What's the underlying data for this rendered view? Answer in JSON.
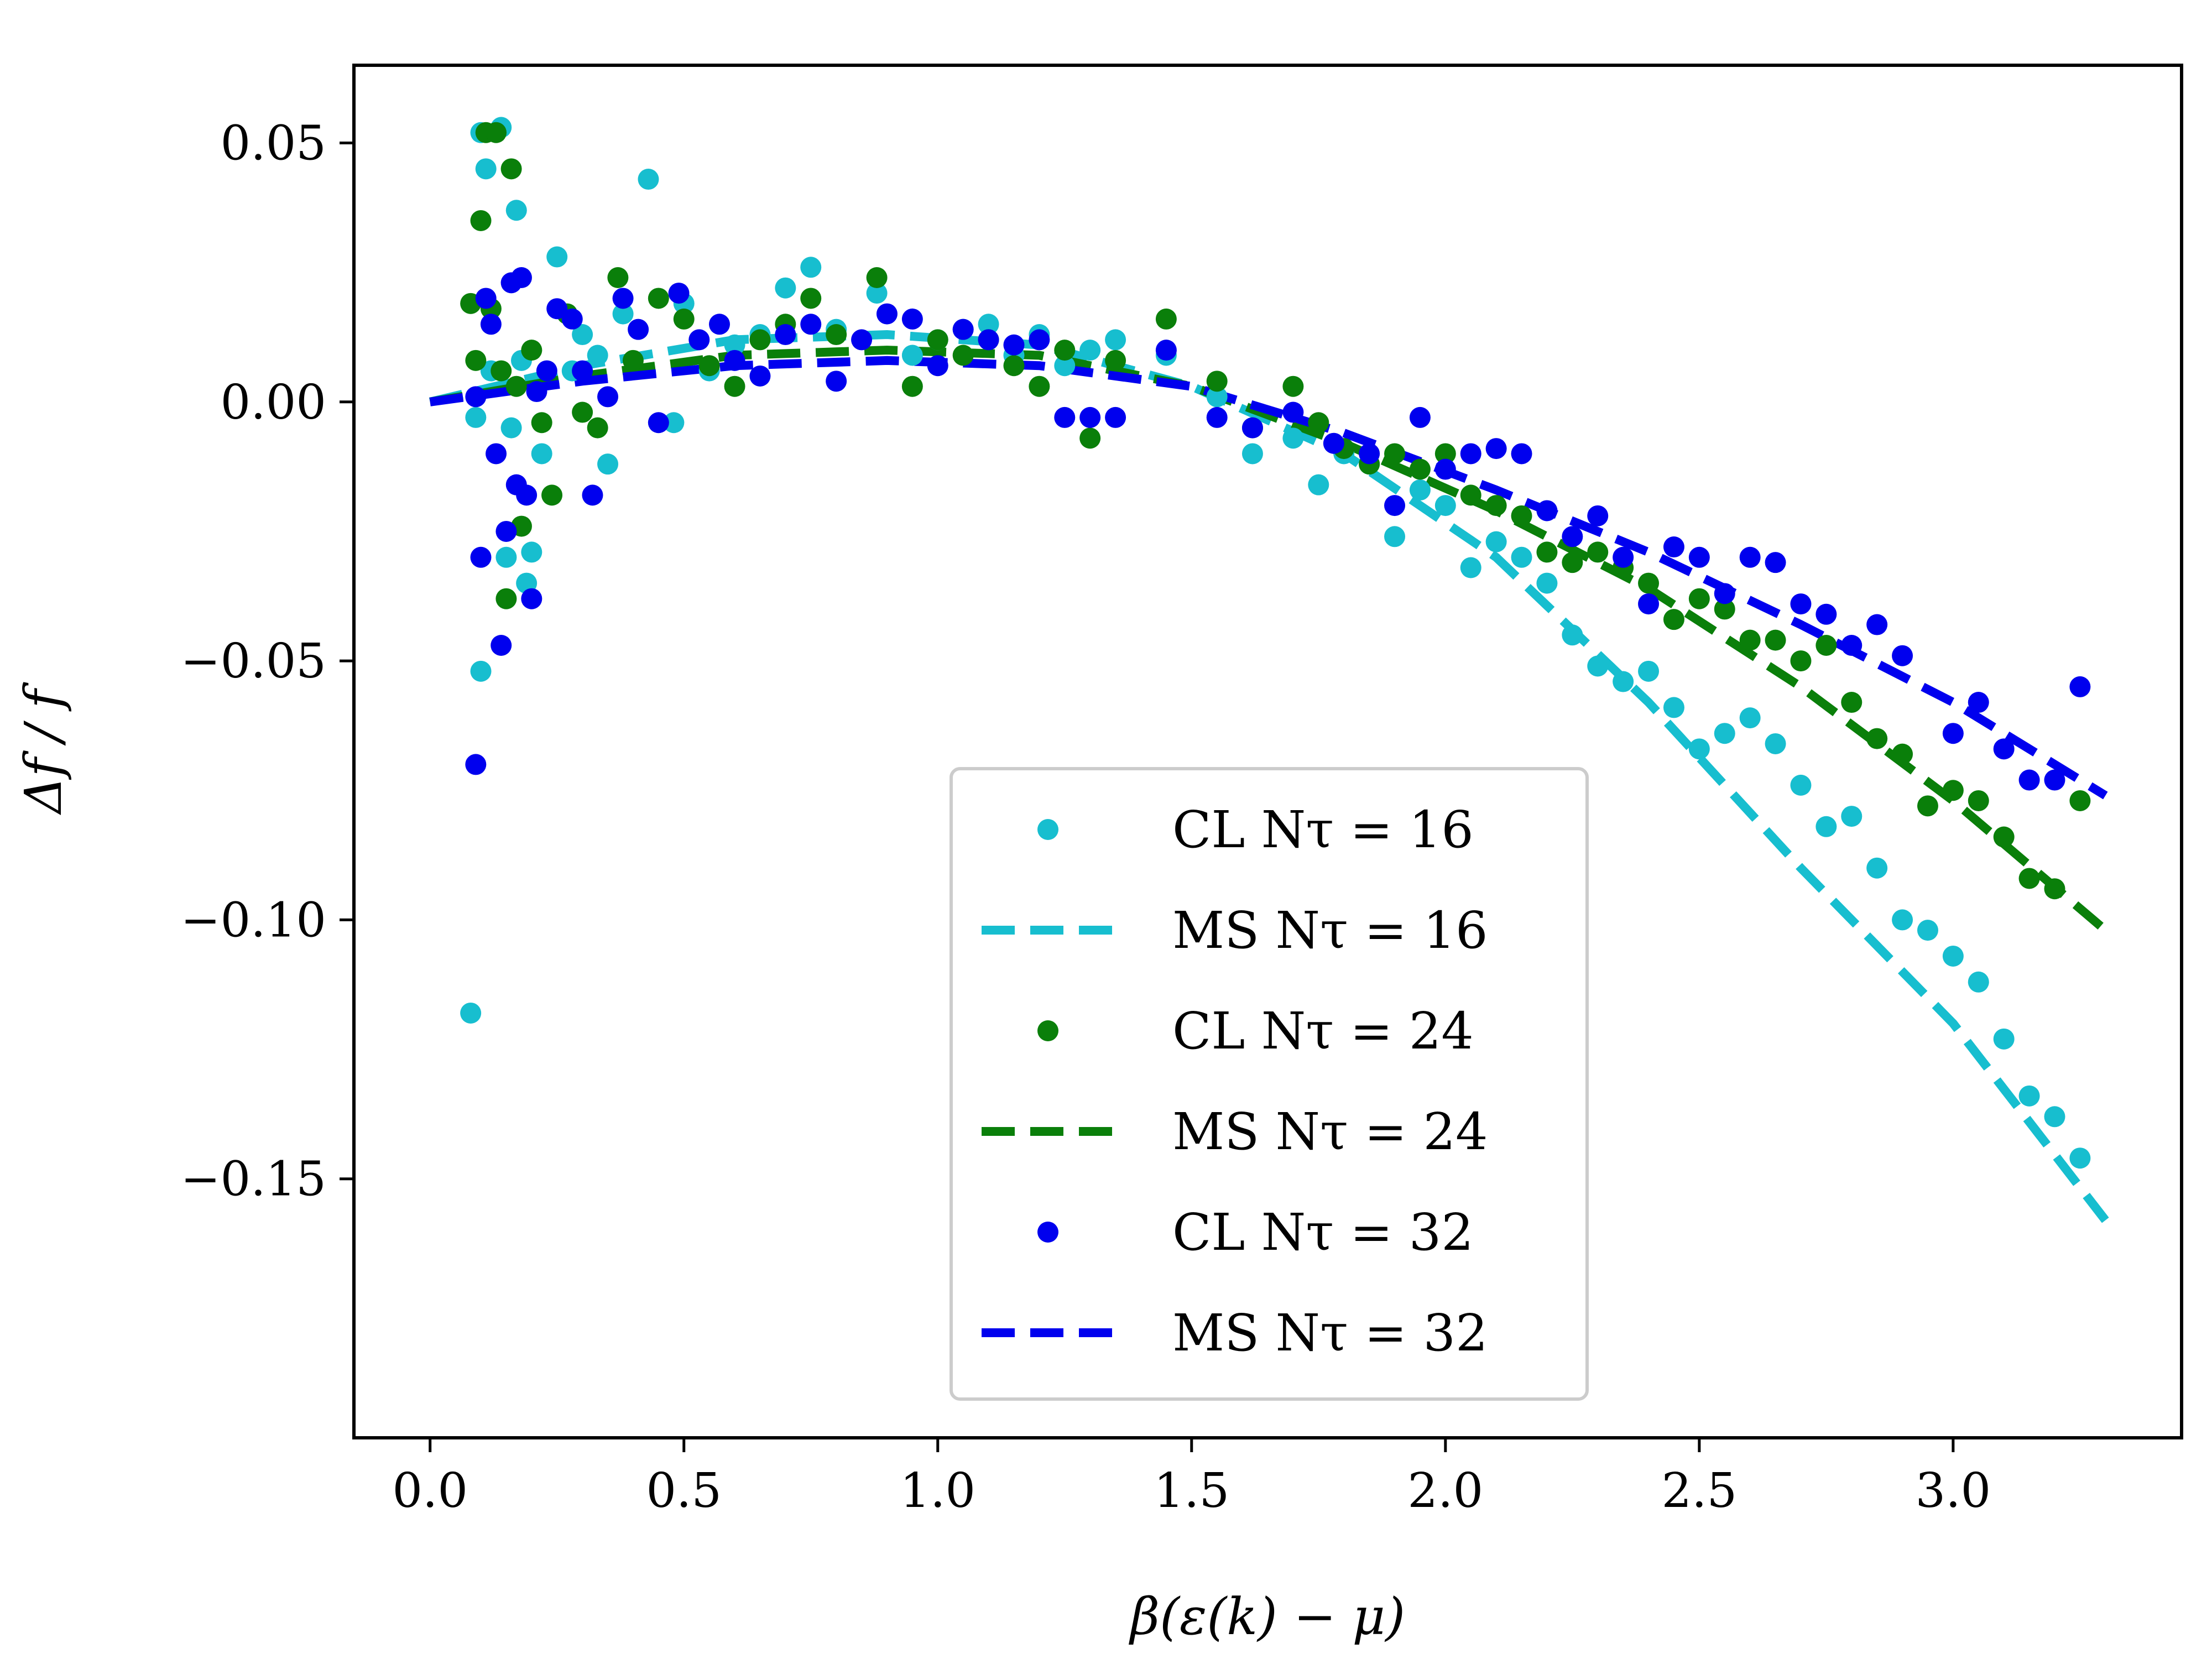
{
  "chart_data": {
    "type": "scatter",
    "title": "",
    "xlabel": "β(ε(k) − μ)",
    "ylabel": "Δf / f",
    "xlim": [
      -0.15,
      3.45
    ],
    "ylim": [
      -0.2,
      0.065
    ],
    "xticks": [
      0.0,
      0.5,
      1.0,
      1.5,
      2.0,
      2.5,
      3.0
    ],
    "xtick_labels": [
      "0.0",
      "0.5",
      "1.0",
      "1.5",
      "2.0",
      "2.5",
      "3.0"
    ],
    "yticks": [
      0.05,
      0.0,
      -0.05,
      -0.1,
      -0.15
    ],
    "ytick_labels": [
      "0.05",
      "0.00",
      "−0.05",
      "−0.10",
      "−0.15"
    ],
    "grid": false,
    "legend_position": "lower-center",
    "series": [
      {
        "name": "CL N_τ = 16",
        "label": "CL  Nτ = 16",
        "kind": "points",
        "color": "#17becf",
        "x": [
          0.08,
          0.09,
          0.1,
          0.1,
          0.11,
          0.12,
          0.14,
          0.15,
          0.16,
          0.17,
          0.18,
          0.19,
          0.2,
          0.22,
          0.25,
          0.28,
          0.3,
          0.33,
          0.35,
          0.38,
          0.43,
          0.48,
          0.5,
          0.55,
          0.6,
          0.65,
          0.7,
          0.75,
          0.8,
          0.88,
          0.95,
          1.0,
          1.05,
          1.1,
          1.15,
          1.2,
          1.25,
          1.3,
          1.35,
          1.45,
          1.55,
          1.62,
          1.7,
          1.75,
          1.8,
          1.85,
          1.9,
          1.95,
          2.0,
          2.05,
          2.1,
          2.15,
          2.2,
          2.25,
          2.3,
          2.35,
          2.4,
          2.45,
          2.5,
          2.55,
          2.6,
          2.65,
          2.7,
          2.75,
          2.8,
          2.85,
          2.9,
          2.95,
          3.0,
          3.05,
          3.1,
          3.15,
          3.2,
          3.25
        ],
        "y": [
          -0.118,
          -0.003,
          -0.052,
          0.052,
          0.045,
          0.006,
          0.053,
          -0.03,
          -0.005,
          0.037,
          0.008,
          -0.035,
          -0.029,
          -0.01,
          0.028,
          0.006,
          0.013,
          0.009,
          -0.012,
          0.017,
          0.043,
          -0.004,
          0.019,
          0.006,
          0.011,
          0.013,
          0.022,
          0.026,
          0.014,
          0.021,
          0.009,
          0.012,
          0.014,
          0.015,
          0.009,
          0.013,
          0.007,
          0.01,
          0.012,
          0.009,
          0.001,
          -0.01,
          -0.007,
          -0.016,
          -0.01,
          -0.012,
          -0.026,
          -0.017,
          -0.02,
          -0.032,
          -0.027,
          -0.03,
          -0.035,
          -0.045,
          -0.051,
          -0.054,
          -0.052,
          -0.059,
          -0.067,
          -0.064,
          -0.061,
          -0.066,
          -0.074,
          -0.082,
          -0.08,
          -0.09,
          -0.1,
          -0.102,
          -0.107,
          -0.112,
          -0.123,
          -0.134,
          -0.138,
          -0.146
        ]
      },
      {
        "name": "MS N_τ = 16",
        "label": "MS  Nτ = 16",
        "kind": "dashed",
        "color": "#17becf",
        "x": [
          0.0,
          0.3,
          0.6,
          0.9,
          1.2,
          1.5,
          1.8,
          2.1,
          2.4,
          2.7,
          3.0,
          3.3
        ],
        "y": [
          0.0,
          0.007,
          0.012,
          0.013,
          0.011,
          0.003,
          -0.01,
          -0.03,
          -0.058,
          -0.09,
          -0.12,
          -0.158
        ]
      },
      {
        "name": "CL N_τ = 24",
        "label": "CL  Nτ = 24",
        "kind": "points",
        "color": "#0a7f0a",
        "x": [
          0.08,
          0.09,
          0.1,
          0.11,
          0.12,
          0.13,
          0.14,
          0.15,
          0.16,
          0.17,
          0.18,
          0.2,
          0.22,
          0.24,
          0.27,
          0.3,
          0.33,
          0.37,
          0.4,
          0.45,
          0.5,
          0.55,
          0.6,
          0.65,
          0.7,
          0.75,
          0.8,
          0.88,
          0.95,
          1.0,
          1.05,
          1.1,
          1.15,
          1.2,
          1.25,
          1.3,
          1.35,
          1.45,
          1.55,
          1.62,
          1.7,
          1.75,
          1.8,
          1.85,
          1.9,
          1.95,
          2.0,
          2.05,
          2.1,
          2.15,
          2.2,
          2.25,
          2.3,
          2.35,
          2.4,
          2.45,
          2.5,
          2.55,
          2.6,
          2.65,
          2.7,
          2.75,
          2.8,
          2.85,
          2.9,
          2.95,
          3.0,
          3.05,
          3.1,
          3.15,
          3.2,
          3.25
        ],
        "y": [
          0.019,
          0.008,
          0.035,
          0.052,
          0.018,
          0.052,
          0.006,
          -0.038,
          0.045,
          0.003,
          -0.024,
          0.01,
          -0.004,
          -0.018,
          0.017,
          -0.002,
          -0.005,
          0.024,
          0.008,
          0.02,
          0.016,
          0.007,
          0.003,
          0.012,
          0.015,
          0.02,
          0.013,
          0.024,
          0.003,
          0.012,
          0.009,
          0.012,
          0.007,
          0.003,
          0.01,
          -0.007,
          0.008,
          0.016,
          0.004,
          -0.005,
          0.003,
          -0.004,
          -0.009,
          -0.012,
          -0.01,
          -0.013,
          -0.01,
          -0.018,
          -0.02,
          -0.022,
          -0.029,
          -0.031,
          -0.029,
          -0.032,
          -0.035,
          -0.042,
          -0.038,
          -0.04,
          -0.046,
          -0.046,
          -0.05,
          -0.047,
          -0.058,
          -0.065,
          -0.068,
          -0.078,
          -0.075,
          -0.077,
          -0.084,
          -0.092,
          -0.094,
          -0.077
        ]
      },
      {
        "name": "MS N_τ = 24",
        "label": "MS  Nτ = 24",
        "kind": "dashed",
        "color": "#0a7f0a",
        "x": [
          0.0,
          0.3,
          0.6,
          0.9,
          1.2,
          1.5,
          1.8,
          2.1,
          2.4,
          2.7,
          3.0,
          3.3
        ],
        "y": [
          0.0,
          0.005,
          0.009,
          0.01,
          0.009,
          0.003,
          -0.008,
          -0.021,
          -0.036,
          -0.055,
          -0.077,
          -0.102
        ]
      },
      {
        "name": "CL N_τ = 32",
        "label": "CL  Nτ = 32",
        "kind": "points",
        "color": "#0000ee",
        "x": [
          0.09,
          0.09,
          0.1,
          0.11,
          0.12,
          0.13,
          0.14,
          0.15,
          0.16,
          0.17,
          0.18,
          0.19,
          0.2,
          0.21,
          0.23,
          0.25,
          0.28,
          0.3,
          0.32,
          0.35,
          0.38,
          0.41,
          0.45,
          0.49,
          0.53,
          0.57,
          0.6,
          0.65,
          0.7,
          0.75,
          0.8,
          0.85,
          0.9,
          0.95,
          1.0,
          1.05,
          1.1,
          1.15,
          1.2,
          1.25,
          1.3,
          1.35,
          1.45,
          1.55,
          1.62,
          1.7,
          1.78,
          1.85,
          1.9,
          1.95,
          2.0,
          2.05,
          2.1,
          2.15,
          2.2,
          2.25,
          2.3,
          2.35,
          2.4,
          2.45,
          2.5,
          2.55,
          2.6,
          2.65,
          2.7,
          2.75,
          2.8,
          2.85,
          2.9,
          3.0,
          3.05,
          3.1,
          3.15,
          3.2,
          3.25
        ],
        "y": [
          -0.07,
          0.001,
          -0.03,
          0.02,
          0.015,
          -0.01,
          -0.047,
          -0.025,
          0.023,
          -0.016,
          0.024,
          -0.018,
          -0.038,
          0.002,
          0.006,
          0.018,
          0.016,
          0.006,
          -0.018,
          0.001,
          0.02,
          0.014,
          -0.004,
          0.021,
          0.012,
          0.015,
          0.008,
          0.005,
          0.013,
          0.015,
          0.004,
          0.012,
          0.017,
          0.016,
          0.007,
          0.014,
          0.012,
          0.011,
          0.012,
          -0.003,
          -0.003,
          -0.003,
          0.01,
          -0.003,
          -0.005,
          -0.002,
          -0.008,
          -0.01,
          -0.02,
          -0.003,
          -0.013,
          -0.01,
          -0.009,
          -0.01,
          -0.021,
          -0.026,
          -0.022,
          -0.03,
          -0.039,
          -0.028,
          -0.03,
          -0.037,
          -0.03,
          -0.031,
          -0.039,
          -0.041,
          -0.047,
          -0.043,
          -0.049,
          -0.064,
          -0.058,
          -0.067,
          -0.073,
          -0.073,
          -0.055
        ]
      },
      {
        "name": "MS N_τ = 32",
        "label": "MS  Nτ = 32",
        "kind": "dashed",
        "color": "#0000ee",
        "x": [
          0.0,
          0.3,
          0.6,
          0.9,
          1.2,
          1.5,
          1.8,
          2.1,
          2.4,
          2.7,
          3.0,
          3.3
        ],
        "y": [
          0.0,
          0.004,
          0.007,
          0.008,
          0.007,
          0.003,
          -0.006,
          -0.017,
          -0.029,
          -0.043,
          -0.058,
          -0.076
        ]
      }
    ]
  }
}
